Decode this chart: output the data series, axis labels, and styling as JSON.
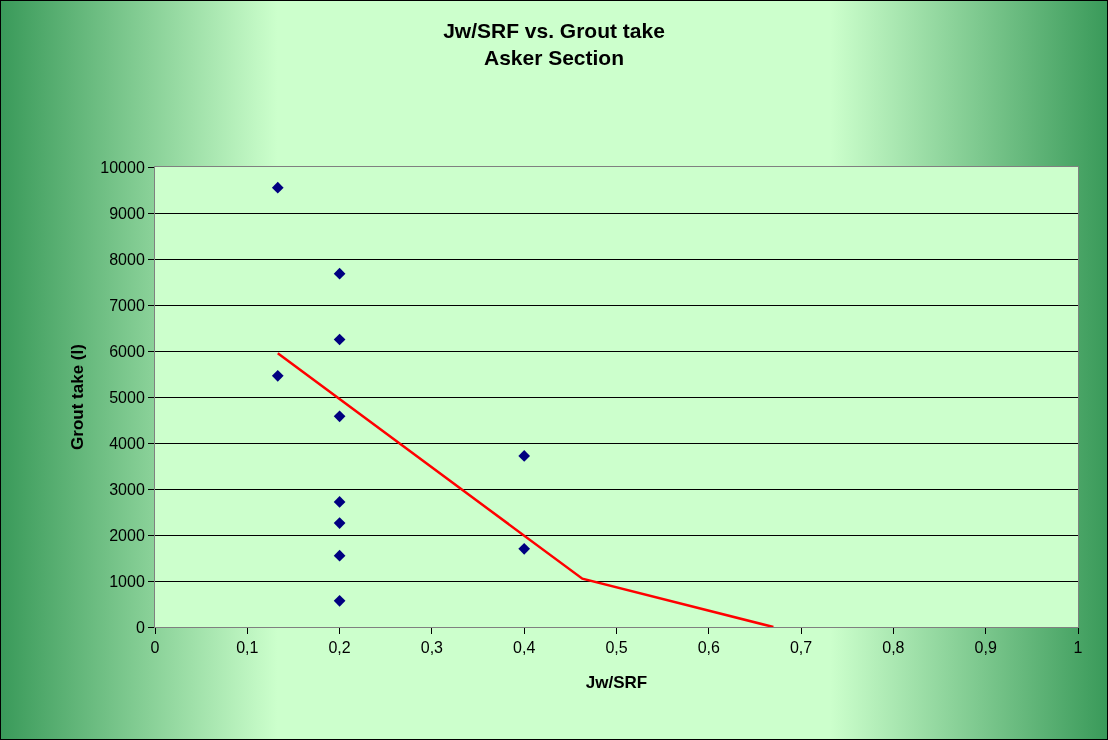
{
  "chart_data": {
    "type": "scatter",
    "title": "Jw/SRF vs. Grout take\nAsker Section",
    "xlabel": "Jw/SRF",
    "ylabel": "Grout take (l)",
    "series": [
      {
        "type": "scatter",
        "color": "#000080",
        "x": [
          0.133,
          0.2,
          0.2,
          0.133,
          0.2,
          0.4,
          0.2,
          0.2,
          0.2,
          0.4,
          0.2
        ],
        "values": [
          9550,
          7680,
          6250,
          5460,
          4580,
          3720,
          2720,
          2260,
          1550,
          1700,
          570
        ]
      },
      {
        "type": "line",
        "color": "#ff0000",
        "marker": "none",
        "x": [
          0.133,
          0.463,
          0.67
        ],
        "values": [
          5950,
          1050,
          0
        ]
      }
    ],
    "marker": "diamond",
    "grid": "y",
    "xlim": [
      0,
      1
    ],
    "ylim": [
      0,
      10000
    ],
    "xticks": [
      0,
      {
        "value": 0.1,
        "label": "0,1"
      },
      {
        "value": 0.2,
        "label": "0,2"
      },
      {
        "value": 0.3,
        "label": "0,3"
      },
      {
        "value": 0.4,
        "label": "0,4"
      },
      {
        "value": 0.5,
        "label": "0,5"
      },
      {
        "value": 0.6,
        "label": "0,6"
      },
      {
        "value": 0.7,
        "label": "0,7"
      },
      {
        "value": 0.8,
        "label": "0,8"
      },
      {
        "value": 0.9,
        "label": "0,9"
      },
      1
    ],
    "yticks": [
      0,
      1000,
      2000,
      3000,
      4000,
      5000,
      6000,
      7000,
      8000,
      9000,
      10000
    ]
  }
}
